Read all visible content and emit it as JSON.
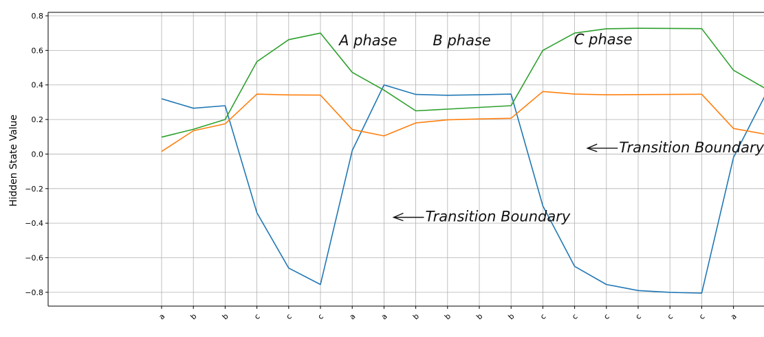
{
  "chart_data": {
    "type": "line",
    "ylabel": "Hidden State Value",
    "xlabel": "",
    "ylim": [
      -0.88,
      0.82
    ],
    "yticks": [
      0.8,
      0.6,
      0.4,
      0.2,
      0.0,
      -0.2,
      -0.4,
      -0.6,
      -0.8
    ],
    "ytick_labels": [
      "0.8",
      "0.6",
      "0.4",
      "0.2",
      "0.0",
      "−0.2",
      "−0.4",
      "−0.6",
      "−0.8"
    ],
    "grid": true,
    "categories": [
      "a",
      "b",
      "b",
      "c",
      "c",
      "c",
      "a",
      "a",
      "b",
      "b",
      "b",
      "b",
      "c",
      "c",
      "c",
      "c",
      "c",
      "c",
      "a",
      ""
    ],
    "series": [
      {
        "color": "#1f77b4",
        "values": [
          0.32,
          0.265,
          0.28,
          -0.34,
          -0.66,
          -0.755,
          0.02,
          0.4,
          0.345,
          0.34,
          0.343,
          0.347,
          -0.3,
          -0.65,
          -0.755,
          -0.79,
          -0.8,
          -0.805,
          -0.02,
          0.34
        ]
      },
      {
        "color": "#ff7f0e",
        "values": [
          0.015,
          0.135,
          0.175,
          0.347,
          0.342,
          0.341,
          0.142,
          0.105,
          0.18,
          0.198,
          0.203,
          0.207,
          0.362,
          0.347,
          0.343,
          0.344,
          0.345,
          0.346,
          0.148,
          0.115
        ]
      },
      {
        "color": "#2ca02c",
        "values": [
          0.098,
          0.143,
          0.2,
          0.535,
          0.662,
          0.7,
          0.473,
          0.37,
          0.25,
          0.26,
          0.27,
          0.28,
          0.6,
          0.7,
          0.725,
          0.728,
          0.727,
          0.726,
          0.485,
          0.38
        ]
      }
    ],
    "annotations": [
      {
        "text": "A phase",
        "x": 6.5,
        "y": 0.63
      },
      {
        "text": "B phase",
        "x": 9.45,
        "y": 0.63
      },
      {
        "text": "C phase",
        "x": 13.9,
        "y": 0.635
      },
      {
        "text": "Transition Boundary",
        "x": 14.4,
        "y": 0.01,
        "arrow": true
      },
      {
        "text": "Transition Boundary",
        "x": 8.3,
        "y": -0.39,
        "arrow": true
      }
    ]
  }
}
